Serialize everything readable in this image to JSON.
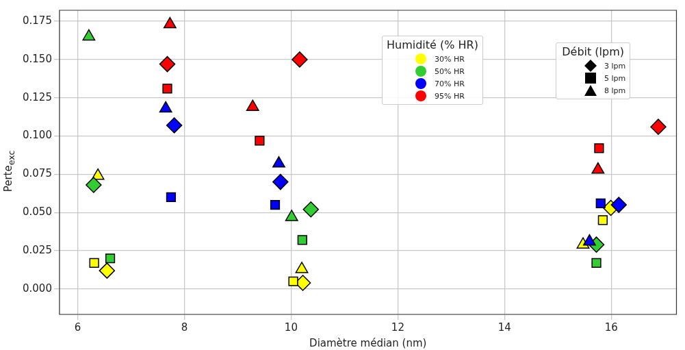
{
  "chart_data": {
    "type": "scatter",
    "xlabel": "Diamètre médian (nm)",
    "ylabel": "Perte$_{exc}$",
    "legend_title": [
      "Humidité (% HR)",
      "Débit (lpm)"
    ],
    "legend": "top right",
    "grid": true,
    "xlim": [
      5.66,
      17.22
    ],
    "xticks": [
      6,
      8,
      10,
      12,
      14,
      16
    ],
    "ylim": [
      -0.0166,
      0.1822
    ],
    "yticks": [
      {
        "value": 0,
        "label": "0.000"
      },
      {
        "value": 0.025,
        "label": "0.025"
      },
      {
        "value": 0.05,
        "label": "0.050"
      },
      {
        "value": 0.075,
        "label": "0.075"
      },
      {
        "value": 0.1,
        "label": "0.100"
      },
      {
        "value": 0.125,
        "label": "0.125"
      },
      {
        "value": 0.15,
        "label": "0.150"
      },
      {
        "value": 0.175,
        "label": "0.175"
      }
    ],
    "series": [
      {
        "color": "#ffff00",
        "marker": "diamond",
        "x": [
          6.55,
          10.22,
          15.99
        ],
        "values": [
          0.012,
          0.004,
          0.053
        ]
      },
      {
        "color": "#ffff00",
        "marker": "square",
        "x": [
          6.31,
          10.04,
          15.84
        ],
        "values": [
          0.017,
          0.005,
          0.045
        ]
      },
      {
        "color": "#ffff00",
        "marker": "triangle",
        "x": [
          6.38,
          10.2,
          15.47
        ],
        "values": [
          0.074,
          0.013,
          0.029
        ]
      },
      {
        "color": "#32cd32",
        "marker": "diamond",
        "x": [
          6.3,
          10.37,
          15.72
        ],
        "values": [
          0.068,
          0.052,
          0.029
        ]
      },
      {
        "color": "#32cd32",
        "marker": "square",
        "x": [
          6.61,
          10.21,
          15.72
        ],
        "values": [
          0.02,
          0.032,
          0.017
        ]
      },
      {
        "color": "#32cd32",
        "marker": "triangle",
        "x": [
          6.21,
          10.01
        ],
        "values": [
          0.165,
          0.047
        ]
      },
      {
        "color": "#0000ff",
        "marker": "diamond",
        "x": [
          7.81,
          9.8,
          16.14
        ],
        "values": [
          0.107,
          0.07,
          0.055
        ]
      },
      {
        "color": "#0000ff",
        "marker": "square",
        "x": [
          7.75,
          9.7,
          15.8
        ],
        "values": [
          0.06,
          0.055,
          0.056
        ]
      },
      {
        "color": "#0000ff",
        "marker": "triangle",
        "x": [
          7.65,
          9.77,
          15.59
        ],
        "values": [
          0.118,
          0.082,
          0.031
        ]
      },
      {
        "color": "#ff0000",
        "marker": "diamond",
        "x": [
          7.68,
          10.16,
          16.88
        ],
        "values": [
          0.147,
          0.15,
          0.106
        ]
      },
      {
        "color": "#ff0000",
        "marker": "square",
        "x": [
          7.68,
          9.41,
          15.77
        ],
        "values": [
          0.131,
          0.097,
          0.092
        ]
      },
      {
        "color": "#ff0000",
        "marker": "triangle",
        "x": [
          7.73,
          9.28,
          15.75
        ],
        "values": [
          0.173,
          0.119,
          0.078
        ]
      },
      {
        "name": "30% HR",
        "color": "#ffff00",
        "marker": "circle"
      },
      {
        "name": "50% HR",
        "color": "#32cd32",
        "marker": "circle"
      },
      {
        "name": "70% HR",
        "color": "#0000ff",
        "marker": "circle"
      },
      {
        "name": "95% HR",
        "color": "#ff0000",
        "marker": "circle"
      },
      {
        "name": "3 lpm",
        "color": "#000000",
        "marker": "diamond"
      },
      {
        "name": "5 lpm",
        "color": "#000000",
        "marker": "square"
      },
      {
        "name": "8 lpm",
        "color": "#000000",
        "marker": "triangle"
      }
    ]
  }
}
